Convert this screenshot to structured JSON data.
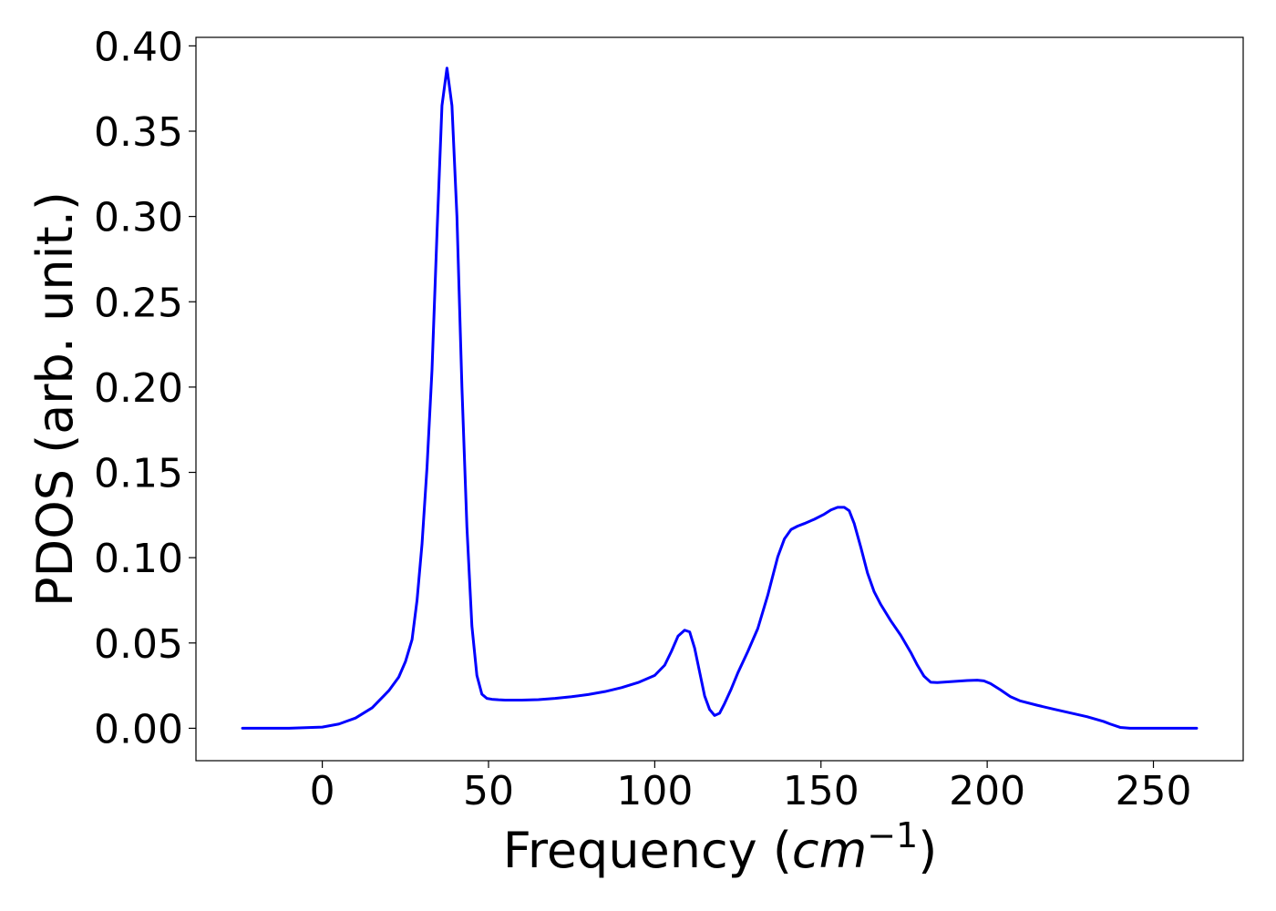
{
  "chart_data": {
    "type": "line",
    "title": "",
    "xlabel_prefix": "Frequency (",
    "xlabel_math": "cm",
    "xlabel_sup": "−1",
    "xlabel_suffix": ")",
    "ylabel": "PDOS (arb. unit.)",
    "xlim": [
      -38,
      277
    ],
    "ylim": [
      -0.019,
      0.405
    ],
    "x_ticks": [
      0,
      50,
      100,
      150,
      200,
      250
    ],
    "x_tick_labels": [
      "0",
      "50",
      "100",
      "150",
      "200",
      "250"
    ],
    "y_ticks": [
      0.0,
      0.05,
      0.1,
      0.15,
      0.2,
      0.25,
      0.3,
      0.35,
      0.4
    ],
    "y_tick_labels": [
      "0.00",
      "0.05",
      "0.10",
      "0.15",
      "0.20",
      "0.25",
      "0.30",
      "0.35",
      "0.40"
    ],
    "grid": false,
    "series": [
      {
        "color": "#0000ff",
        "x": [
          -24,
          -10,
          0,
          5,
          10,
          15,
          20,
          23,
          25,
          27,
          28.5,
          30,
          31.5,
          33,
          34.5,
          36,
          37.5,
          39,
          40.5,
          42,
          43.5,
          45,
          46.5,
          48,
          49.5,
          51,
          53,
          55,
          60,
          65,
          70,
          75,
          80,
          85,
          90,
          95,
          100,
          103,
          105,
          107,
          109,
          110.5,
          112,
          113.5,
          115,
          116.5,
          118,
          119.5,
          121,
          123,
          125,
          128,
          131,
          134,
          137,
          139,
          141,
          143,
          145,
          148,
          151,
          153,
          155,
          157,
          158.5,
          160,
          162,
          164,
          166,
          168,
          171,
          174,
          177,
          179,
          181,
          183,
          185,
          188,
          191,
          194,
          197,
          199,
          201,
          204,
          207,
          210,
          215,
          220,
          225,
          230,
          235,
          237,
          240,
          243,
          250,
          263
        ],
        "y": [
          0.0,
          0.0,
          0.0007,
          0.0025,
          0.006,
          0.012,
          0.022,
          0.03,
          0.039,
          0.052,
          0.075,
          0.108,
          0.153,
          0.21,
          0.29,
          0.365,
          0.387,
          0.365,
          0.3,
          0.2,
          0.118,
          0.06,
          0.031,
          0.02,
          0.0175,
          0.017,
          0.0167,
          0.0165,
          0.0165,
          0.0168,
          0.0175,
          0.0185,
          0.0198,
          0.0215,
          0.0238,
          0.0268,
          0.031,
          0.037,
          0.045,
          0.054,
          0.0575,
          0.0565,
          0.047,
          0.033,
          0.019,
          0.011,
          0.0075,
          0.0088,
          0.0145,
          0.023,
          0.0325,
          0.045,
          0.0585,
          0.078,
          0.1005,
          0.111,
          0.1165,
          0.1185,
          0.12,
          0.1225,
          0.1255,
          0.128,
          0.1295,
          0.1295,
          0.1275,
          0.12,
          0.106,
          0.091,
          0.08,
          0.0725,
          0.063,
          0.0545,
          0.0445,
          0.037,
          0.0305,
          0.027,
          0.0268,
          0.0272,
          0.0276,
          0.028,
          0.0282,
          0.0278,
          0.0262,
          0.0225,
          0.0185,
          0.016,
          0.0135,
          0.0112,
          0.009,
          0.0068,
          0.004,
          0.0025,
          0.0005,
          0.0,
          0.0,
          0.0
        ]
      }
    ]
  }
}
